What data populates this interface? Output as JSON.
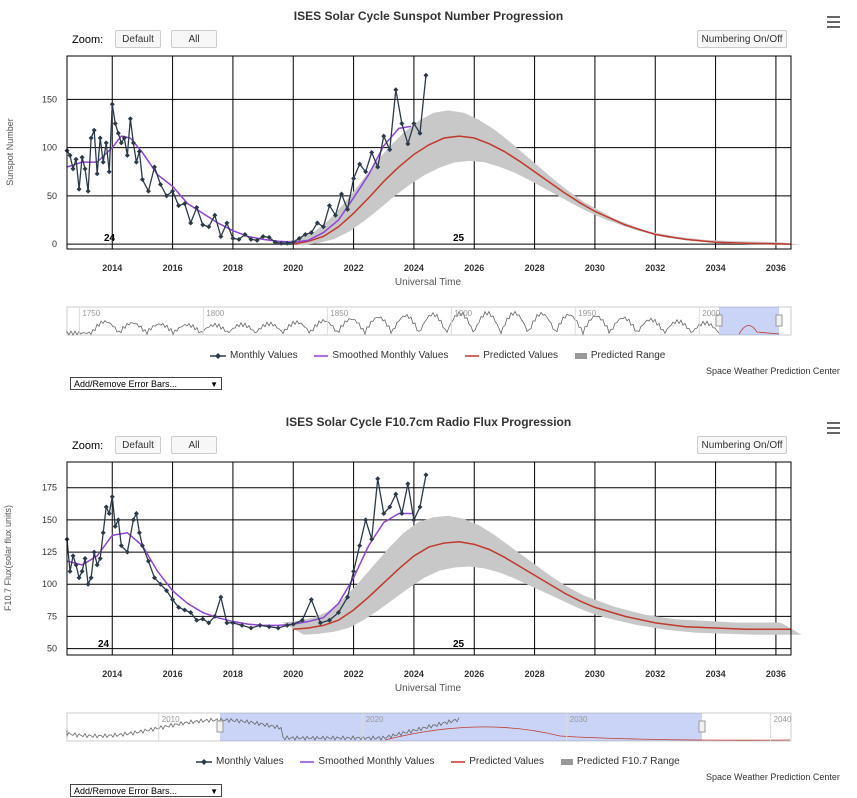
{
  "colors": {
    "monthly": "#2b3a4a",
    "smoothed": "#8e44d6",
    "predicted": "#c0392b",
    "range": "#c8c8c8",
    "navigator_mask": "rgba(102,133,230,0.35)"
  },
  "common": {
    "zoom_label": "Zoom:",
    "default_btn": "Default",
    "all_btn": "All",
    "numbering_btn": "Numbering On/Off",
    "xlabel": "Universal Time",
    "credit": "Space Weather Prediction Center",
    "error_bars_select": "Add/Remove Error Bars...",
    "legend_monthly": "Monthly Values",
    "legend_smoothed": "Smoothed Monthly Values",
    "legend_predicted": "Predicted Values"
  },
  "chart1": {
    "title": "ISES Solar Cycle Sunspot Number Progression",
    "ylabel": "Sunspot Number",
    "legend_range": "Predicted Range",
    "cycle_labels": [
      "24",
      "25"
    ],
    "yticks": [
      "0",
      "50",
      "100",
      "150"
    ],
    "xticks": [
      "2014",
      "2016",
      "2018",
      "2020",
      "2022",
      "2024",
      "2026",
      "2028",
      "2030",
      "2032",
      "2034",
      "2036"
    ],
    "nav_ticks": [
      "1750",
      "1800",
      "1850",
      "1900",
      "1950",
      "2000"
    ]
  },
  "chart2": {
    "title": "ISES Solar Cycle F10.7cm Radio Flux Progression",
    "ylabel": "F10.7 Flux(solar flux units)",
    "legend_range": "Predicted F10.7 Range",
    "cycle_labels": [
      "24",
      "25"
    ],
    "yticks": [
      "50",
      "75",
      "100",
      "125",
      "150",
      "175"
    ],
    "xticks": [
      "2014",
      "2016",
      "2018",
      "2020",
      "2022",
      "2024",
      "2026",
      "2028",
      "2030",
      "2032",
      "2034",
      "2036"
    ],
    "nav_ticks": [
      "2010",
      "2020",
      "2030",
      "2040"
    ]
  },
  "chart_data": [
    {
      "type": "line",
      "title": "ISES Solar Cycle Sunspot Number Progression",
      "xlabel": "Universal Time",
      "ylabel": "Sunspot Number",
      "xlim": [
        2012.5,
        2036.5
      ],
      "ylim": [
        -5,
        195
      ],
      "grid": true,
      "legend": "bottom",
      "series": [
        {
          "name": "Monthly Values",
          "x": [
            2012.5,
            2012.6,
            2012.7,
            2012.8,
            2012.9,
            2013.0,
            2013.1,
            2013.2,
            2013.3,
            2013.4,
            2013.5,
            2013.6,
            2013.7,
            2013.8,
            2013.9,
            2014.0,
            2014.1,
            2014.2,
            2014.3,
            2014.4,
            2014.5,
            2014.6,
            2014.7,
            2014.8,
            2014.9,
            2015.0,
            2015.2,
            2015.4,
            2015.6,
            2015.8,
            2016.0,
            2016.2,
            2016.4,
            2016.6,
            2016.8,
            2017.0,
            2017.2,
            2017.4,
            2017.6,
            2017.8,
            2018.0,
            2018.2,
            2018.4,
            2018.6,
            2018.8,
            2019.0,
            2019.2,
            2019.4,
            2019.6,
            2019.8,
            2020.0,
            2020.2,
            2020.4,
            2020.6,
            2020.8,
            2021.0,
            2021.2,
            2021.4,
            2021.6,
            2021.8,
            2022.0,
            2022.2,
            2022.4,
            2022.6,
            2022.8,
            2023.0,
            2023.2,
            2023.4,
            2023.6,
            2023.8,
            2024.0,
            2024.2,
            2024.4
          ],
          "y": [
            97,
            92,
            78,
            88,
            57,
            90,
            78,
            55,
            110,
            118,
            73,
            110,
            85,
            105,
            75,
            145,
            125,
            115,
            105,
            110,
            92,
            130,
            105,
            85,
            96,
            67,
            55,
            80,
            62,
            50,
            55,
            40,
            42,
            22,
            38,
            20,
            18,
            30,
            8,
            22,
            6,
            5,
            10,
            5,
            4,
            8,
            7,
            2,
            1,
            1,
            2,
            6,
            10,
            12,
            22,
            18,
            40,
            30,
            52,
            36,
            68,
            83,
            75,
            95,
            80,
            112,
            98,
            160,
            125,
            104,
            125,
            115,
            175
          ]
        },
        {
          "name": "Smoothed Monthly Values",
          "x": [
            2012.5,
            2013.0,
            2013.5,
            2014.0,
            2014.3,
            2014.6,
            2015.0,
            2015.5,
            2016.0,
            2016.5,
            2017.0,
            2017.5,
            2018.0,
            2018.5,
            2019.0,
            2019.5,
            2020.0,
            2020.5,
            2021.0,
            2021.5,
            2022.0,
            2022.5,
            2023.0,
            2023.5,
            2023.9
          ],
          "y": [
            80,
            85,
            85,
            100,
            112,
            110,
            95,
            72,
            60,
            42,
            32,
            22,
            14,
            8,
            5,
            3,
            2,
            4,
            12,
            25,
            48,
            72,
            102,
            120,
            122
          ]
        },
        {
          "name": "Predicted Values",
          "x": [
            2020.0,
            2020.5,
            2021.0,
            2021.5,
            2022.0,
            2022.5,
            2023.0,
            2023.5,
            2024.0,
            2024.5,
            2025.0,
            2025.5,
            2026.0,
            2026.5,
            2027.0,
            2027.5,
            2028.0,
            2028.5,
            2029.0,
            2029.5,
            2030.0,
            2031.0,
            2032.0,
            2033.0,
            2034.0,
            2035.0,
            2036.5
          ],
          "y": [
            0,
            3,
            8,
            18,
            32,
            48,
            65,
            80,
            93,
            103,
            110,
            112,
            110,
            104,
            96,
            86,
            75,
            64,
            53,
            43,
            34,
            20,
            10,
            5,
            2,
            1,
            0
          ]
        }
      ]
    },
    {
      "type": "line",
      "title": "ISES Solar Cycle F10.7cm Radio Flux Progression",
      "xlabel": "Universal Time",
      "ylabel": "F10.7 Flux(solar flux units)",
      "xlim": [
        2012.5,
        2036.5
      ],
      "ylim": [
        45,
        195
      ],
      "grid": true,
      "legend": "bottom",
      "series": [
        {
          "name": "Monthly Values",
          "x": [
            2012.5,
            2012.6,
            2012.7,
            2012.8,
            2012.9,
            2013.0,
            2013.1,
            2013.2,
            2013.3,
            2013.4,
            2013.5,
            2013.6,
            2013.7,
            2013.8,
            2013.9,
            2014.0,
            2014.1,
            2014.2,
            2014.3,
            2014.5,
            2014.7,
            2014.8,
            2014.9,
            2015.0,
            2015.2,
            2015.4,
            2015.6,
            2015.8,
            2016.0,
            2016.2,
            2016.4,
            2016.6,
            2016.8,
            2017.0,
            2017.2,
            2017.4,
            2017.6,
            2017.8,
            2018.0,
            2018.3,
            2018.6,
            2018.9,
            2019.2,
            2019.5,
            2019.8,
            2020.0,
            2020.3,
            2020.6,
            2020.9,
            2021.2,
            2021.5,
            2021.8,
            2022.0,
            2022.2,
            2022.4,
            2022.6,
            2022.8,
            2023.0,
            2023.2,
            2023.4,
            2023.6,
            2023.8,
            2024.0,
            2024.2,
            2024.4
          ],
          "y": [
            135,
            110,
            122,
            115,
            105,
            110,
            120,
            100,
            105,
            125,
            115,
            120,
            140,
            160,
            155,
            168,
            145,
            150,
            130,
            125,
            150,
            155,
            140,
            130,
            118,
            105,
            100,
            95,
            88,
            82,
            80,
            78,
            72,
            73,
            70,
            75,
            90,
            70,
            70,
            68,
            66,
            68,
            67,
            66,
            68,
            69,
            72,
            88,
            70,
            72,
            78,
            90,
            110,
            130,
            150,
            135,
            182,
            155,
            160,
            170,
            155,
            178,
            150,
            160,
            185
          ]
        },
        {
          "name": "Smoothed Monthly Values",
          "x": [
            2012.5,
            2013.0,
            2013.5,
            2014.0,
            2014.5,
            2015.0,
            2015.5,
            2016.0,
            2016.5,
            2017.0,
            2017.5,
            2018.0,
            2018.5,
            2019.0,
            2019.5,
            2020.0,
            2020.5,
            2021.0,
            2021.5,
            2022.0,
            2022.5,
            2023.0,
            2023.5,
            2024.0
          ],
          "y": [
            118,
            115,
            122,
            138,
            140,
            130,
            110,
            95,
            85,
            78,
            74,
            71,
            69,
            68,
            68,
            69,
            71,
            74,
            85,
            105,
            130,
            148,
            155,
            155
          ]
        },
        {
          "name": "Predicted Values",
          "x": [
            2020.0,
            2020.5,
            2021.0,
            2021.5,
            2022.0,
            2022.5,
            2023.0,
            2023.5,
            2024.0,
            2024.5,
            2025.0,
            2025.5,
            2026.0,
            2026.5,
            2027.0,
            2027.5,
            2028.0,
            2028.5,
            2029.0,
            2029.5,
            2030.0,
            2031.0,
            2032.0,
            2033.0,
            2034.0,
            2035.0,
            2036.5
          ],
          "y": [
            65,
            66,
            68,
            72,
            80,
            90,
            101,
            112,
            122,
            129,
            132,
            133,
            131,
            127,
            121,
            114,
            107,
            100,
            93,
            87,
            82,
            75,
            70,
            67,
            66,
            65,
            65
          ]
        }
      ]
    }
  ]
}
